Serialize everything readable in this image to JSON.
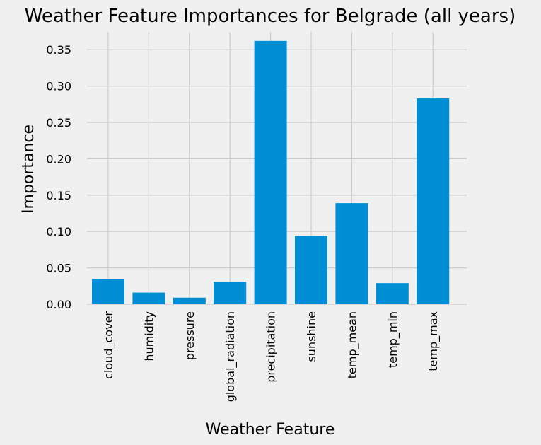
{
  "colors": {
    "background": "#f0f0f0",
    "bar": "#008fd5",
    "grid": "#cbcbcb"
  },
  "chart_data": {
    "type": "bar",
    "title": "Weather Feature Importances for Belgrade (all years)",
    "xlabel": "Weather Feature",
    "ylabel": "Importance",
    "categories": [
      "cloud_cover",
      "humidity",
      "pressure",
      "global_radiation",
      "precipitation",
      "sunshine",
      "temp_mean",
      "temp_min",
      "temp_max"
    ],
    "values": [
      0.035,
      0.016,
      0.009,
      0.031,
      0.362,
      0.094,
      0.139,
      0.029,
      0.283
    ],
    "ylim": [
      0,
      0.375
    ],
    "yticks": [
      "0.00",
      "0.05",
      "0.10",
      "0.15",
      "0.20",
      "0.25",
      "0.30",
      "0.35"
    ],
    "grid": true,
    "legend": "none"
  }
}
